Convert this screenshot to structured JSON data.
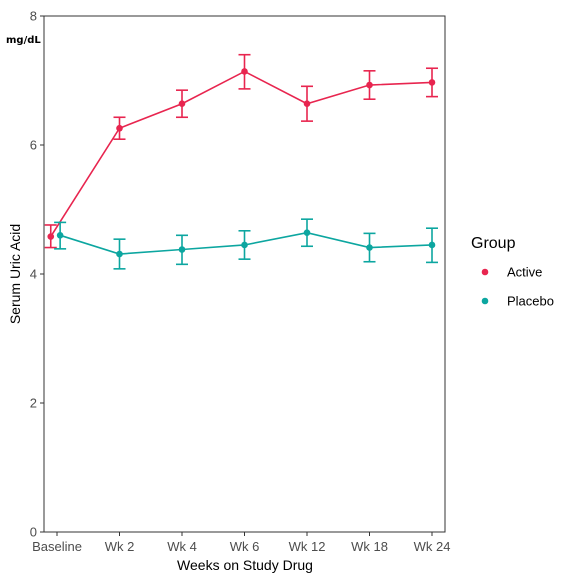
{
  "chart_data": {
    "type": "line",
    "ylabel": "Serum Uric Acid",
    "xlabel": "Weeks on Study Drug",
    "unit_label": "mg/dL",
    "categories": [
      "Baseline",
      "Wk 2",
      "Wk 4",
      "Wk 6",
      "Wk 12",
      "Wk 18",
      "Wk 24"
    ],
    "ylim": [
      0,
      8
    ],
    "y_ticks": [
      "0",
      "2",
      "4",
      "6",
      "8"
    ],
    "grid": false,
    "legend_position": "right",
    "legend_title": "Group",
    "series": [
      {
        "name": "Active",
        "color": "#e8254f",
        "values": [
          4.58,
          6.26,
          6.64,
          7.14,
          6.64,
          6.93,
          6.97
        ],
        "error_low": [
          4.41,
          6.09,
          6.43,
          6.87,
          6.37,
          6.71,
          6.75
        ],
        "error_high": [
          4.76,
          6.43,
          6.85,
          7.4,
          6.91,
          7.15,
          7.19
        ]
      },
      {
        "name": "Placebo",
        "color": "#0ca6a0",
        "values": [
          4.6,
          4.31,
          4.38,
          4.45,
          4.64,
          4.41,
          4.45
        ],
        "error_low": [
          4.39,
          4.08,
          4.15,
          4.23,
          4.43,
          4.19,
          4.18
        ],
        "error_high": [
          4.8,
          4.54,
          4.6,
          4.67,
          4.85,
          4.63,
          4.71
        ]
      }
    ]
  }
}
